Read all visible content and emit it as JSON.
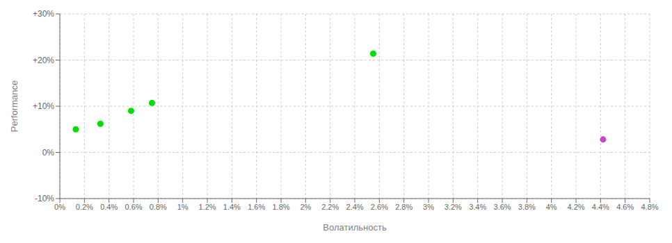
{
  "chart_data": {
    "type": "scatter",
    "xlabel": "Волатильность",
    "ylabel": "Performance",
    "x": [
      0.0013,
      0.0033,
      0.0058,
      0.0075,
      0.0255,
      0.0442
    ],
    "values": [
      0.05,
      0.062,
      0.09,
      0.107,
      0.214,
      0.028
    ],
    "colors": [
      "#00dd00",
      "#00dd00",
      "#00dd00",
      "#00dd00",
      "#00dd00",
      "#cc44cc"
    ],
    "xlim": [
      0,
      0.048
    ],
    "ylim": [
      -0.1,
      0.3
    ],
    "xticks": [
      {
        "value": 0,
        "label": "0%"
      },
      {
        "value": 0.002,
        "label": "0.2%"
      },
      {
        "value": 0.004,
        "label": "0.4%"
      },
      {
        "value": 0.006,
        "label": "0.6%"
      },
      {
        "value": 0.008,
        "label": "0.8%"
      },
      {
        "value": 0.01,
        "label": "1%"
      },
      {
        "value": 0.012,
        "label": "1.2%"
      },
      {
        "value": 0.014,
        "label": "1.4%"
      },
      {
        "value": 0.016,
        "label": "1.6%"
      },
      {
        "value": 0.018,
        "label": "1.8%"
      },
      {
        "value": 0.02,
        "label": "2%"
      },
      {
        "value": 0.022,
        "label": "2.2%"
      },
      {
        "value": 0.024,
        "label": "2.4%"
      },
      {
        "value": 0.026,
        "label": "2.6%"
      },
      {
        "value": 0.028,
        "label": "2.8%"
      },
      {
        "value": 0.03,
        "label": "3%"
      },
      {
        "value": 0.032,
        "label": "3.2%"
      },
      {
        "value": 0.034,
        "label": "3.4%"
      },
      {
        "value": 0.036,
        "label": "3.6%"
      },
      {
        "value": 0.038,
        "label": "3.8%"
      },
      {
        "value": 0.04,
        "label": "4%"
      },
      {
        "value": 0.042,
        "label": "4.2%"
      },
      {
        "value": 0.044,
        "label": "4.4%"
      },
      {
        "value": 0.046,
        "label": "4.6%"
      },
      {
        "value": 0.048,
        "label": "4.8%"
      }
    ],
    "yticks": [
      {
        "value": -0.1,
        "label": "-10%"
      },
      {
        "value": 0.0,
        "label": "0%"
      },
      {
        "value": 0.1,
        "label": "+10%"
      },
      {
        "value": 0.2,
        "label": "+20%"
      },
      {
        "value": 0.3,
        "label": "+30%"
      }
    ],
    "grid": true
  }
}
